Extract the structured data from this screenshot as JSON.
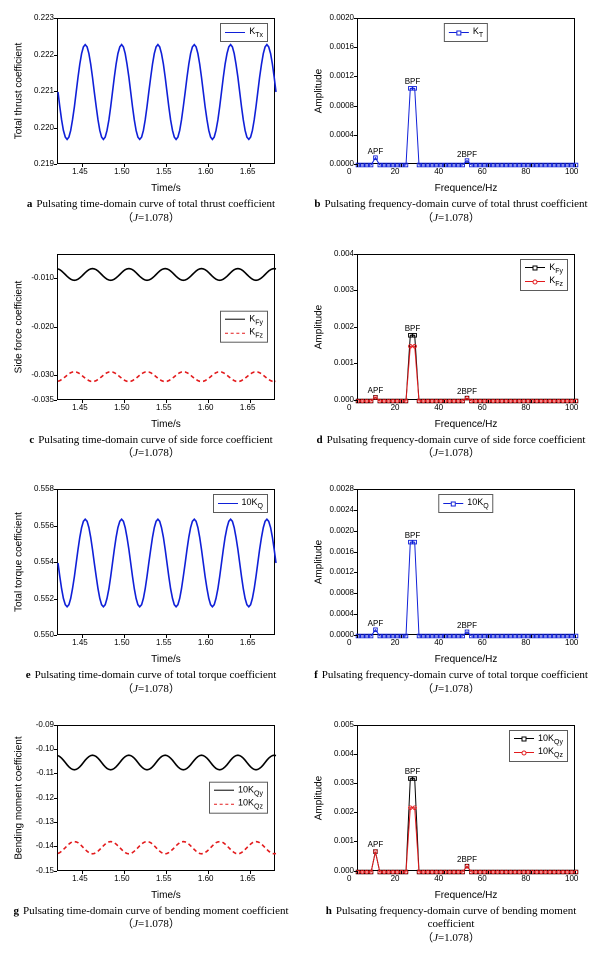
{
  "colors": {
    "blue": "#1020d8",
    "black": "#000000",
    "red": "#e31a1c",
    "axis": "#000000",
    "box": "#5b5b5b",
    "bg": "#ffffff"
  },
  "fonts": {
    "axis_family": "Arial, sans-serif",
    "caption_family": "Times New Roman, serif",
    "axis_fontsize": 10,
    "tick_fontsize": 8,
    "caption_fontsize": 11,
    "legend_fontsize": 9
  },
  "time_axis": {
    "xlabel": "Time/s",
    "xlim": [
      1.42,
      1.68
    ],
    "xticks": [
      1.45,
      1.5,
      1.55,
      1.6,
      1.65
    ],
    "xtick_labels": [
      "1.45",
      "1.50",
      "1.55",
      "1.60",
      "1.65"
    ]
  },
  "freq_axis": {
    "xlabel": "Frequence/Hz",
    "xlim": [
      0,
      100
    ],
    "xticks": [
      0,
      20,
      40,
      60,
      80,
      100
    ],
    "xtick_labels": [
      "0",
      "20",
      "40",
      "60",
      "80",
      "100"
    ]
  },
  "panels": {
    "a": {
      "letter": "a",
      "caption": "Pulsating time-domain curve of total thrust coefficient",
      "J": "1.078",
      "ylabel": "Total thrust coefficient",
      "ylim": [
        0.219,
        0.223
      ],
      "yticks": [
        0.219,
        0.22,
        0.221,
        0.222,
        0.223
      ],
      "ytick_labels": [
        "0.219",
        "0.220",
        "0.221",
        "0.222",
        "0.223"
      ],
      "legend": [
        {
          "label": "K_Tx",
          "shorthand": "K",
          "sub": "Tx",
          "color": "blue",
          "style": "solid",
          "marker": false
        }
      ],
      "legend_pos": "top-right",
      "series": [
        {
          "color": "blue",
          "style": "solid",
          "base": 0.221,
          "amp": 0.0013,
          "cycles": 6,
          "phase": 0.5
        }
      ]
    },
    "b": {
      "letter": "b",
      "caption": "Pulsating frequency-domain curve of total thrust coefficient",
      "J": "1.078",
      "ylabel": "Amplitude",
      "ylim": [
        0.0,
        0.002
      ],
      "yticks": [
        0.0,
        0.0004,
        0.0008,
        0.0012,
        0.0016,
        0.002
      ],
      "ytick_labels": [
        "0.0000",
        "0.0004",
        "0.0008",
        "0.0012",
        "0.0016",
        "0.0020"
      ],
      "legend": [
        {
          "label": "K_T",
          "shorthand": "K",
          "sub": "T",
          "color": "blue",
          "style": "solid",
          "marker": true
        }
      ],
      "legend_pos": "top-center",
      "peaks": [
        {
          "hz": 8,
          "label": "APF",
          "y": 0.0001
        },
        {
          "hz": 25,
          "label": "BPF",
          "y": 0.00105
        },
        {
          "hz": 50,
          "label": "2BPF",
          "y": 6e-05
        }
      ],
      "freq_series": [
        {
          "color": "blue",
          "marker": true
        }
      ]
    },
    "c": {
      "letter": "c",
      "caption": "Pulsating time-domain curve of side force coefficient",
      "J": "1.078",
      "ylabel": "Side force coefficient",
      "ylim": [
        -0.035,
        -0.005
      ],
      "yticks": [
        -0.035,
        -0.03,
        -0.025,
        -0.02,
        -0.015,
        -0.01,
        -0.005
      ],
      "ytick_labels": [
        "-0.035",
        "-0.030",
        "",
        "-0.020",
        "",
        "-0.010",
        ""
      ],
      "legend": [
        {
          "label": "K_Fy",
          "shorthand": "K",
          "sub": "Fy",
          "color": "black",
          "style": "solid",
          "marker": false
        },
        {
          "label": "K_Fz",
          "shorthand": "K",
          "sub": "Fz",
          "color": "red",
          "style": "dash",
          "marker": false
        }
      ],
      "legend_pos": "mid-right",
      "series": [
        {
          "color": "black",
          "style": "solid",
          "base": -0.009,
          "amp": 0.0012,
          "cycles": 6,
          "phase": 0.3
        },
        {
          "color": "red",
          "style": "dash",
          "base": -0.03,
          "amp": 0.001,
          "cycles": 6,
          "phase": 0.8
        }
      ]
    },
    "d": {
      "letter": "d",
      "caption": "Pulsating frequency-domain curve of side force coefficient",
      "J": "1.078",
      "ylabel": "Amplitude",
      "ylim": [
        0.0,
        0.004
      ],
      "yticks": [
        0.0,
        0.001,
        0.002,
        0.003,
        0.004
      ],
      "ytick_labels": [
        "0.000",
        "0.001",
        "0.002",
        "0.003",
        "0.004"
      ],
      "legend": [
        {
          "label": "K_Fy",
          "shorthand": "K",
          "sub": "Fy",
          "color": "black",
          "style": "solid",
          "marker": true
        },
        {
          "label": "K_Fz",
          "shorthand": "K",
          "sub": "Fz",
          "color": "red",
          "style": "solid",
          "marker": true,
          "marker_shape": "circle"
        }
      ],
      "legend_pos": "top-right",
      "peaks": [
        {
          "hz": 8,
          "label": "APF",
          "y": 0.0001
        },
        {
          "hz": 25,
          "label": "BPF",
          "y": 0.0018
        },
        {
          "hz": 50,
          "label": "2BPF",
          "y": 8e-05
        }
      ],
      "freq_series": [
        {
          "color": "black",
          "marker": true,
          "peak_y": 0.0018
        },
        {
          "color": "red",
          "marker": true,
          "marker_shape": "circle",
          "peak_y": 0.0015
        }
      ]
    },
    "e": {
      "letter": "e",
      "caption": "Pulsating time-domain curve of total torque coefficient",
      "J": "1.078",
      "ylabel": "Total torque coefficient",
      "ylim": [
        0.55,
        0.558
      ],
      "yticks": [
        0.55,
        0.552,
        0.554,
        0.556,
        0.558
      ],
      "ytick_labels": [
        "0.550",
        "0.552",
        "0.554",
        "0.556",
        "0.558"
      ],
      "legend": [
        {
          "label": "10K_Q",
          "shorthand": "10K",
          "sub": "Q",
          "color": "blue",
          "style": "solid",
          "marker": false
        }
      ],
      "legend_pos": "top-right",
      "series": [
        {
          "color": "blue",
          "style": "solid",
          "base": 0.554,
          "amp": 0.0024,
          "cycles": 6,
          "phase": 0.5
        }
      ]
    },
    "f": {
      "letter": "f",
      "caption": "Pulsating frequency-domain curve of total torque coefficient",
      "J": "1.078",
      "ylabel": "Amplitude",
      "ylim": [
        0.0,
        0.0028
      ],
      "yticks": [
        0.0,
        0.0004,
        0.0008,
        0.0012,
        0.0016,
        0.002,
        0.0024,
        0.0028
      ],
      "ytick_labels": [
        "0.0000",
        "0.0004",
        "0.0008",
        "0.0012",
        "0.0016",
        "0.0020",
        "0.0024",
        "0.0028"
      ],
      "legend": [
        {
          "label": "10K_Q",
          "shorthand": "10K",
          "sub": "Q",
          "color": "blue",
          "style": "solid",
          "marker": true
        }
      ],
      "legend_pos": "top-center",
      "peaks": [
        {
          "hz": 8,
          "label": "APF",
          "y": 0.00012
        },
        {
          "hz": 25,
          "label": "BPF",
          "y": 0.0018
        },
        {
          "hz": 50,
          "label": "2BPF",
          "y": 8e-05
        }
      ],
      "freq_series": [
        {
          "color": "blue",
          "marker": true
        }
      ]
    },
    "g": {
      "letter": "g",
      "caption": "Pulsating time-domain curve of bending moment coefficient",
      "J": "1.078",
      "ylabel": "Bending moment coefficient",
      "ylim": [
        -0.15,
        -0.09
      ],
      "yticks": [
        -0.15,
        -0.14,
        -0.13,
        -0.12,
        -0.11,
        -0.1,
        -0.09
      ],
      "ytick_labels": [
        "-0.15",
        "-0.14",
        "-0.13",
        "-0.12",
        "-0.11",
        "-0.10",
        "-0.09"
      ],
      "legend": [
        {
          "label": "10K_Qy",
          "shorthand": "10K",
          "sub": "Qy",
          "color": "black",
          "style": "solid",
          "marker": false
        },
        {
          "label": "10K_Qz",
          "shorthand": "10K",
          "sub": "Qz",
          "color": "red",
          "style": "dash",
          "marker": false
        }
      ],
      "legend_pos": "mid-right",
      "series": [
        {
          "color": "black",
          "style": "solid",
          "base": -0.105,
          "amp": 0.003,
          "cycles": 6,
          "phase": 0.3
        },
        {
          "color": "red",
          "style": "dash",
          "base": -0.14,
          "amp": 0.0025,
          "cycles": 6,
          "phase": 0.8
        }
      ]
    },
    "h": {
      "letter": "h",
      "caption": "Pulsating frequency-domain curve of bending moment coefficient",
      "J": "1.078",
      "ylabel": "Amplitude",
      "ylim": [
        0.0,
        0.005
      ],
      "yticks": [
        0.0,
        0.001,
        0.002,
        0.003,
        0.004,
        0.005
      ],
      "ytick_labels": [
        "0.000",
        "0.001",
        "0.002",
        "0.003",
        "0.004",
        "0.005"
      ],
      "legend": [
        {
          "label": "10K_Qy",
          "shorthand": "10K",
          "sub": "Qy",
          "color": "black",
          "style": "solid",
          "marker": true
        },
        {
          "label": "10K_Qz",
          "shorthand": "10K",
          "sub": "Qz",
          "color": "red",
          "style": "solid",
          "marker": true,
          "marker_shape": "circle"
        }
      ],
      "legend_pos": "top-right",
      "peaks": [
        {
          "hz": 8,
          "label": "APF",
          "y": 0.0007
        },
        {
          "hz": 25,
          "label": "BPF",
          "y": 0.0032
        },
        {
          "hz": 50,
          "label": "2BPF",
          "y": 0.0002
        }
      ],
      "freq_series": [
        {
          "color": "black",
          "marker": true,
          "peak_y": 0.0032
        },
        {
          "color": "red",
          "marker": true,
          "marker_shape": "circle",
          "peak_y": 0.0022
        }
      ]
    }
  },
  "order": [
    "a",
    "b",
    "c",
    "d",
    "e",
    "f",
    "g",
    "h"
  ]
}
